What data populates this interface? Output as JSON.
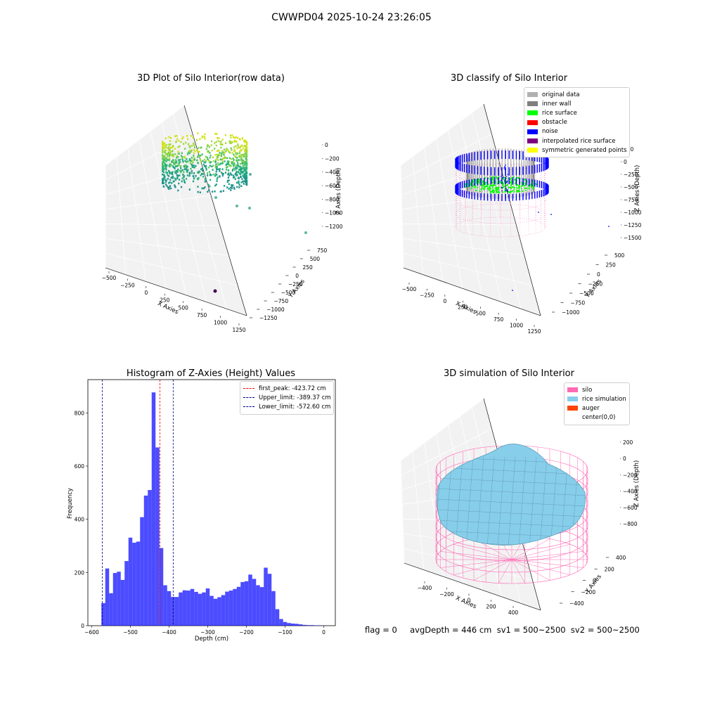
{
  "suptitle": "CWWPD04 2025-10-24 23:26:05",
  "panel1": {
    "title": "3D Plot of Silo Interior(row data)",
    "xlabel": "X Axies",
    "ylabel": "Y Axies",
    "zlabel": "Z Axies (Depth)",
    "x_ticks": [
      "−500",
      "−250",
      "0",
      "250",
      "500",
      "750",
      "1000",
      "1250"
    ],
    "y_ticks": [
      "750",
      "500",
      "250",
      "0",
      "−250",
      "−500",
      "−750",
      "−1000",
      "−1250"
    ],
    "z_ticks": [
      "0",
      "−200",
      "−400",
      "−600",
      "−800",
      "−1000",
      "−1200"
    ]
  },
  "panel2": {
    "title": "3D classify of Silo Interior",
    "xlabel": "X Axies",
    "ylabel": "Y Axies",
    "zlabel": "Z Axies (Depth)",
    "x_ticks": [
      "−500",
      "−250",
      "0",
      "250",
      "500",
      "750",
      "1000",
      "1250"
    ],
    "y_ticks": [
      "500",
      "250",
      "0",
      "−250",
      "−500",
      "−750",
      "−1000"
    ],
    "z_ticks": [
      "250",
      "0",
      "−250",
      "−500",
      "−750",
      "−1000",
      "−1250",
      "−1500"
    ],
    "legend": [
      {
        "label": "original data",
        "color": "#b0b0b0"
      },
      {
        "label": "inner wall",
        "color": "#808080"
      },
      {
        "label": "rice surface",
        "color": "#00ff00"
      },
      {
        "label": "obstacle",
        "color": "#ff0000"
      },
      {
        "label": "noise",
        "color": "#0000ff"
      },
      {
        "label": "interpolated rice surface",
        "color": "#800080"
      },
      {
        "label": "symmetric generated points",
        "color": "#ffff00"
      }
    ]
  },
  "panel4": {
    "title": "3D simulation of Silo Interior",
    "xlabel": "X Axies",
    "ylabel": "Y Axies",
    "zlabel": "Z Axies (Depth)",
    "x_ticks": [
      "−400",
      "−200",
      "0",
      "200",
      "400"
    ],
    "y_ticks": [
      "400",
      "200",
      "0",
      "−200",
      "−400"
    ],
    "z_ticks": [
      "200",
      "0",
      "−200",
      "−400",
      "−600",
      "−800"
    ],
    "legend": [
      {
        "label": "silo",
        "color": "#ff69b4"
      },
      {
        "label": "rice simulation",
        "color": "#87ceeb"
      },
      {
        "label": "auger",
        "color": "#ff4500"
      },
      {
        "label": "center(0,0)",
        "color": "#ffffff"
      }
    ]
  },
  "chart_data": {
    "type": "bar",
    "title": "Histogram of Z-Axies (Height) Values",
    "xlabel": "Depth (cm)",
    "ylabel": "Frequency",
    "xlim": [
      -600,
      0
    ],
    "ylim": [
      0,
      900
    ],
    "x_ticks": [
      -600,
      -500,
      -400,
      -300,
      -200,
      -100,
      0
    ],
    "y_ticks": [
      0,
      200,
      400,
      600,
      800
    ],
    "x_tick_labels": [
      "−600",
      "−500",
      "−400",
      "−300",
      "−200",
      "−100",
      "0"
    ],
    "bin_edges": [
      -575,
      -565,
      -555,
      -545,
      -535,
      -525,
      -515,
      -505,
      -495,
      -485,
      -475,
      -465,
      -455,
      -445,
      -435,
      -425,
      -415,
      -405,
      -395,
      -385,
      -375,
      -365,
      -355,
      -345,
      -335,
      -325,
      -315,
      -305,
      -295,
      -285,
      -275,
      -265,
      -255,
      -245,
      -235,
      -225,
      -215,
      -205,
      -195,
      -185,
      -175,
      -165,
      -155,
      -145,
      -135,
      -125,
      -115,
      -105,
      -95,
      -85,
      -75,
      -65,
      -55,
      -45,
      -35,
      -25,
      -15,
      -5
    ],
    "values": [
      85,
      215,
      122,
      198,
      203,
      172,
      243,
      331,
      312,
      316,
      408,
      489,
      510,
      877,
      670,
      292,
      152,
      130,
      108,
      108,
      125,
      133,
      132,
      138,
      127,
      120,
      125,
      140,
      112,
      101,
      107,
      115,
      128,
      132,
      138,
      146,
      164,
      167,
      192,
      176,
      152,
      145,
      218,
      195,
      130,
      62,
      25,
      14,
      10,
      8,
      7,
      5,
      3,
      2,
      2,
      1,
      1
    ],
    "color": "#0000ff",
    "vlines": [
      {
        "label": "first_peak: -423.72 cm",
        "x": -423.72,
        "color": "#ff0000"
      },
      {
        "label": "Upper_limit: -389.37 cm",
        "x": -389.37,
        "color": "#00008b"
      },
      {
        "label": "Lower_limit: -572.60 cm",
        "x": -572.6,
        "color": "#00008b"
      }
    ]
  },
  "footer": "flag = 0     avgDepth = 446 cm  sv1 = 500~2500  sv2 = 500~2500"
}
